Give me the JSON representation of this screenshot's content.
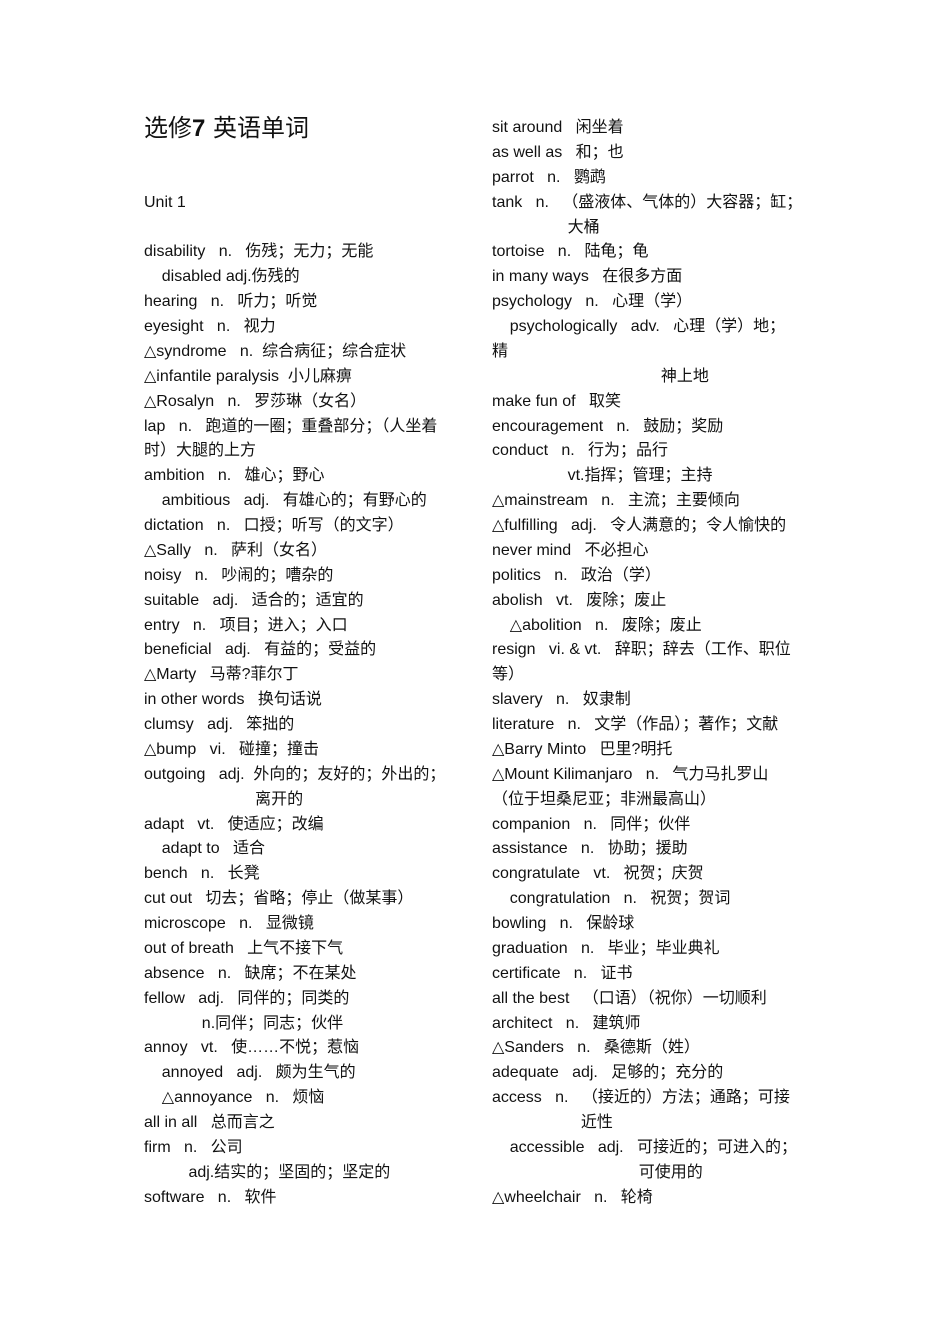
{
  "document": {
    "title_prefix": "选修",
    "title_number": "7",
    "title_suffix": "英语单词",
    "left_column": [
      "",
      "",
      "",
      "Unit 1",
      "",
      "disability   n.   伤残；无力；无能",
      "    disabled adj.伤残的",
      "hearing   n.   听力；听觉",
      "eyesight   n.   视力",
      "△syndrome   n.  综合病征；综合症状",
      "△infantile paralysis  小儿麻痹",
      "△Rosalyn   n.   罗莎琳（女名）",
      "lap   n.   跑道的一圈；重叠部分；（人坐着",
      "时）大腿的上方",
      "ambition   n.   雄心；野心",
      "    ambitious   adj.   有雄心的；有野心的",
      "dictation   n.   口授；听写（的文字）",
      "△Sally   n.   萨利（女名）",
      "noisy   n.   吵闹的；嘈杂的",
      "suitable   adj.   适合的；适宜的",
      "entry   n.   项目；进入；入口",
      "beneficial   adj.   有益的；受益的",
      "△Marty   马蒂?菲尔丁",
      "in other words   换句话说",
      "clumsy   adj.   笨拙的",
      "△bump   vi.   碰撞；撞击",
      "outgoing   adj.  外向的；友好的；外出的；",
      "                         离开的",
      "adapt   vt.   使适应；改编",
      "    adapt to   适合",
      "bench   n.   长凳",
      "cut out   切去；省略；停止（做某事）",
      "microscope   n.   显微镜",
      "out of breath   上气不接下气",
      "absence   n.   缺席；不在某处",
      "fellow   adj.   同伴的；同类的",
      "             n.同伴；同志；伙伴",
      "annoy   vt.   使……不悦；惹恼",
      "    annoyed   adj.   颇为生气的",
      "    △annoyance   n.   烦恼",
      "all in all   总而言之",
      "firm   n.   公司",
      "          adj.结实的；坚固的；坚定的",
      "software   n.   软件"
    ],
    "right_column": [
      "sit around   闲坐着",
      "as well as   和；也",
      "parrot   n.   鹦鹉",
      "tank   n.   （盛液体、气体的）大容器；缸；",
      "                 大桶",
      "tortoise   n.   陆龟；龟",
      "in many ways   在很多方面",
      "psychology   n.   心理（学）",
      "    psychologically   adv.   心理（学）地；",
      "精",
      "                                      神上地",
      "make fun of   取笑",
      "encouragement   n.   鼓励；奖励",
      "conduct   n.   行为；品行",
      "                 vt.指挥；管理；主持",
      "△mainstream   n.   主流；主要倾向",
      "△fulfilling   adj.   令人满意的；令人愉快的",
      "never mind   不必担心",
      "politics   n.   政治（学）",
      "abolish   vt.   废除；废止",
      "    △abolition   n.   废除；废止",
      "resign   vi. & vt.   辞职；辞去（工作、职位",
      "等）",
      "slavery   n.   奴隶制",
      "literature   n.   文学（作品）；著作；文献",
      "△Barry Minto   巴里?明托",
      "△Mount Kilimanjaro   n.   气力马扎罗山",
      "（位于坦桑尼亚；非洲最高山）",
      "companion   n.   同伴；伙伴",
      "assistance   n.   协助；援助",
      "congratulate   vt.   祝贺；庆贺",
      "    congratulation   n.   祝贺；贺词",
      "bowling   n.   保龄球",
      "graduation   n.   毕业；毕业典礼",
      "certificate   n.   证书",
      "all the best   （口语）（祝你）一切顺利",
      "architect   n.   建筑师",
      "△Sanders   n.   桑德斯（姓）",
      "adequate   adj.   足够的；充分的",
      "access   n.   （接近的）方法；通路；可接",
      "                    近性",
      "    accessible   adj.   可接近的；可进入的；",
      "                                 可使用的",
      "△wheelchair   n.   轮椅"
    ]
  }
}
